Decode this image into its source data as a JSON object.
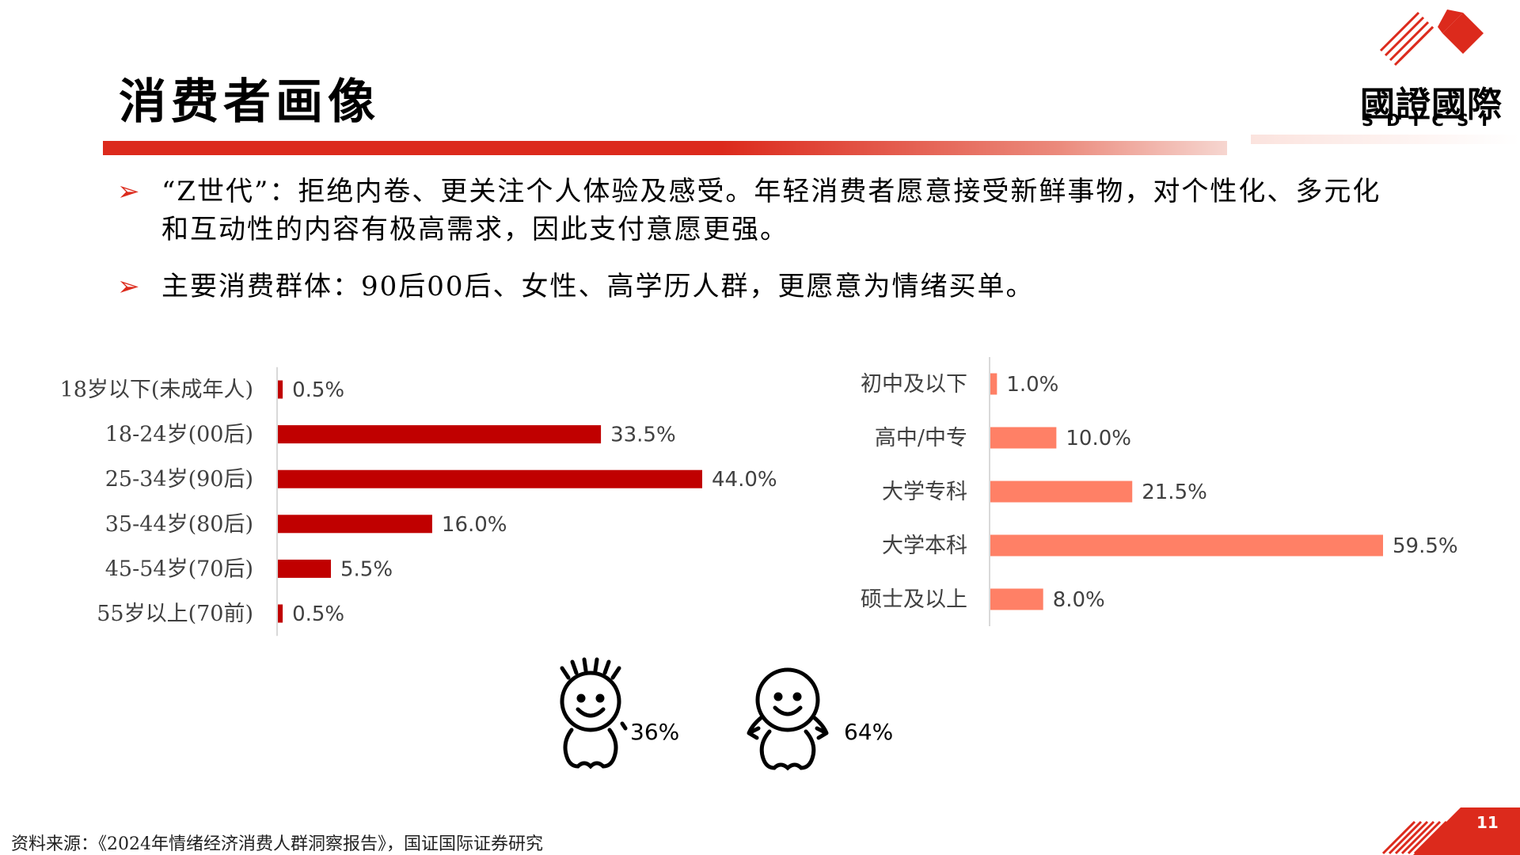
{
  "header": {
    "title": "消费者画像",
    "logo_cn": "國證國際",
    "logo_en": "SDICSI",
    "brand_color": "#dc2a1c"
  },
  "bullets": [
    {
      "marker": "➢",
      "text": "“Z世代”：拒绝内卷、更关注个人体验及感受。年轻消费者愿意接受新鲜事物，对个性化、多元化和互动性的内容有极高需求，因此支付意愿更强。"
    },
    {
      "marker": "➢",
      "text": "主要消费群体：90后00后、女性、高学历人群，更愿意为情绪买单。"
    }
  ],
  "chart_data": [
    {
      "type": "bar",
      "orientation": "horizontal",
      "categories": [
        "18岁以下(未成年人)",
        "18-24岁(00后)",
        "25-34岁(90后)",
        "35-44岁(80后)",
        "45-54岁(70后)",
        "55岁以上(70前)"
      ],
      "values": [
        0.5,
        33.5,
        44.0,
        16.0,
        5.5,
        0.5
      ],
      "labels": [
        "0.5%",
        "33.5%",
        "44.0%",
        "16.0%",
        "5.5%",
        "0.5%"
      ],
      "color": "#c00000"
    },
    {
      "type": "bar",
      "orientation": "horizontal",
      "categories": [
        "初中及以下",
        "高中/中专",
        "大学专科",
        "大学本科",
        "硕士及以上"
      ],
      "values": [
        1.0,
        10.0,
        21.5,
        59.5,
        8.0
      ],
      "labels": [
        "1.0%",
        "10.0%",
        "21.5%",
        "59.5%",
        "8.0%"
      ],
      "color": "#ff8066"
    },
    {
      "type": "pictogram",
      "categories": [
        "male-icon",
        "female-icon"
      ],
      "values": [
        36,
        64
      ],
      "labels": [
        "36%",
        "64%"
      ]
    }
  ],
  "footer": {
    "source": "资料来源：《2024年情绪经济消费人群洞察报告》，国证国际证券研究",
    "page": "11"
  }
}
